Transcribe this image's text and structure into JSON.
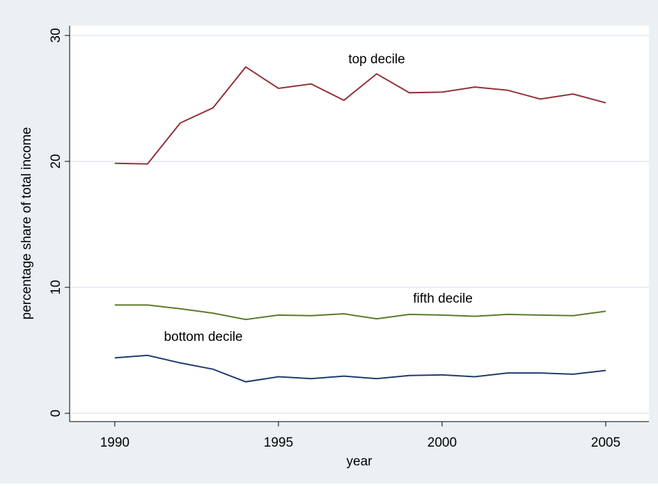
{
  "chart_data": {
    "type": "line",
    "x": [
      1990,
      1991,
      1992,
      1993,
      1994,
      1995,
      1996,
      1997,
      1998,
      1999,
      2000,
      2001,
      2002,
      2003,
      2004,
      2005
    ],
    "series": [
      {
        "name": "top decile",
        "color": "#903036",
        "values": [
          19.85,
          19.8,
          23.05,
          24.25,
          27.5,
          25.8,
          26.15,
          24.85,
          26.95,
          25.45,
          25.5,
          25.9,
          25.65,
          24.95,
          25.35,
          24.65
        ]
      },
      {
        "name": "fifth decile",
        "color": "#5a7a2a",
        "values": [
          8.6,
          8.6,
          8.3,
          7.95,
          7.45,
          7.8,
          7.75,
          7.9,
          7.5,
          7.85,
          7.8,
          7.7,
          7.85,
          7.8,
          7.75,
          8.1
        ]
      },
      {
        "name": "bottom decile",
        "color": "#1f3a6e",
        "values": [
          4.4,
          4.6,
          4.0,
          3.5,
          2.5,
          2.9,
          2.75,
          2.95,
          2.75,
          3.0,
          3.05,
          2.9,
          3.2,
          3.2,
          3.1,
          3.4
        ]
      }
    ],
    "xlabel": "year",
    "ylabel": "percentage share of total income",
    "xlim": [
      1988.62,
      2006.32
    ],
    "xticks": [
      1990,
      1995,
      2000,
      2005
    ],
    "ylim": [
      -0.66,
      30.77
    ],
    "yticks": [
      0,
      10,
      20,
      30
    ],
    "grid": true
  }
}
